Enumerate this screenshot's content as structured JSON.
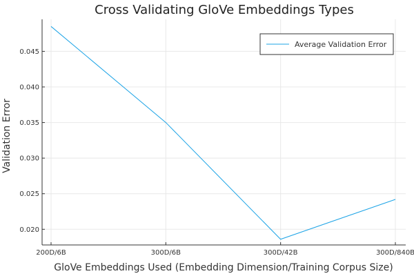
{
  "chart_data": {
    "type": "line",
    "title": "Cross Validating GloVe Embeddings Types",
    "xlabel": "GloVe Embeddings Used (Embedding Dimension/Training Corpus Size)",
    "ylabel": "Validation Error",
    "categories": [
      "200D/6B",
      "300D/6B",
      "300D/42B",
      "300D/840B"
    ],
    "series": [
      {
        "name": "Average Validation Error",
        "values": [
          0.0485,
          0.035,
          0.0186,
          0.0242
        ],
        "color": "#1ba3e6"
      }
    ],
    "yticks": [
      0.02,
      0.025,
      0.03,
      0.035,
      0.04,
      0.045
    ],
    "ytick_labels": [
      "0.020",
      "0.025",
      "0.030",
      "0.035",
      "0.040",
      "0.045"
    ],
    "ylim": [
      0.0178,
      0.0495
    ],
    "grid": true,
    "legend_position": "top-right"
  }
}
